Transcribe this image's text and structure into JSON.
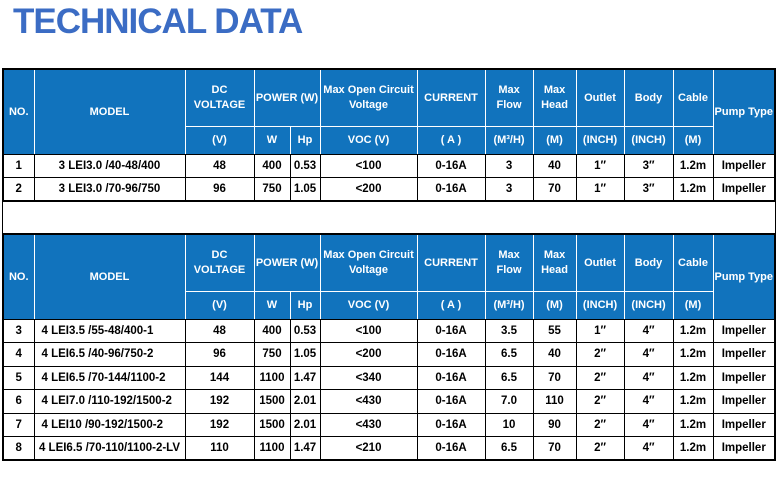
{
  "title": "TECHNICAL DATA",
  "colors": {
    "title_text": "#3B6CC4",
    "header_bg": "#1173BD",
    "header_text": "#FFFFFF",
    "border": "#000000"
  },
  "header": {
    "no": "NO.",
    "model": "MODEL",
    "dc_voltage": "DC VOLTAGE",
    "dc_voltage_unit": "(V)",
    "power": "POWER (W)",
    "power_w": "W",
    "power_hp": "Hp",
    "max_open_circuit_voltage": "Max Open Circuit Voltage",
    "voc_unit": "VOC (V)",
    "current": "CURRENT",
    "current_unit": "( A )",
    "max_flow": "Max Flow",
    "flow_unit": "(M³/H)",
    "max_head": "Max Head",
    "head_unit": "(M)",
    "outlet": "Outlet",
    "outlet_unit": "(INCH)",
    "body": "Body",
    "body_unit": "(INCH)",
    "cable": "Cable",
    "cable_unit": "(M)",
    "pump_type": "Pump Type"
  },
  "chart_data": {
    "type": "table",
    "title": "TECHNICAL DATA",
    "columns": [
      "NO.",
      "MODEL",
      "DC VOLTAGE (V)",
      "POWER W",
      "POWER Hp",
      "Max Open Circuit Voltage VOC (V)",
      "CURRENT ( A )",
      "Max Flow (M³/H)",
      "Max Head (M)",
      "Outlet (INCH)",
      "Body (INCH)",
      "Cable (M)",
      "Pump Type"
    ]
  },
  "tables": [
    {
      "rows": [
        [
          "1",
          "3 LEI3.0 /40-48/400",
          "48",
          "400",
          "0.53",
          "<100",
          "0-16A",
          "3",
          "40",
          "1″",
          "3″",
          "1.2m",
          "Impeller"
        ],
        [
          "2",
          "3 LEI3.0 /70-96/750",
          "96",
          "750",
          "1.05",
          "<200",
          "0-16A",
          "3",
          "70",
          "1″",
          "3″",
          "1.2m",
          "Impeller"
        ]
      ]
    },
    {
      "rows": [
        [
          "3",
          "4 LEI3.5 /55-48/400-1",
          "48",
          "400",
          "0.53",
          "<100",
          "0-16A",
          "3.5",
          "55",
          "1″",
          "4″",
          "1.2m",
          "Impeller"
        ],
        [
          "4",
          "4 LEI6.5 /40-96/750-2",
          "96",
          "750",
          "1.05",
          "<200",
          "0-16A",
          "6.5",
          "40",
          "2″",
          "4″",
          "1.2m",
          "Impeller"
        ],
        [
          "5",
          "4 LEI6.5 /70-144/1100-2",
          "144",
          "1100",
          "1.47",
          "<340",
          "0-16A",
          "6.5",
          "70",
          "2″",
          "4″",
          "1.2m",
          "Impeller"
        ],
        [
          "6",
          "4 LEI7.0 /110-192/1500-2",
          "192",
          "1500",
          "2.01",
          "<430",
          "0-16A",
          "7.0",
          "110",
          "2″",
          "4″",
          "1.2m",
          "Impeller"
        ],
        [
          "7",
          "4 LEI10 /90-192/1500-2",
          "192",
          "1500",
          "2.01",
          "<430",
          "0-16A",
          "10",
          "90",
          "2″",
          "4″",
          "1.2m",
          "Impeller"
        ],
        [
          "8",
          "4 LEI6.5 /70-110/1100-2-LV",
          "110",
          "1100",
          "1.47",
          "<210",
          "0-16A",
          "6.5",
          "70",
          "2″",
          "4″",
          "1.2m",
          "Impeller"
        ]
      ]
    }
  ]
}
